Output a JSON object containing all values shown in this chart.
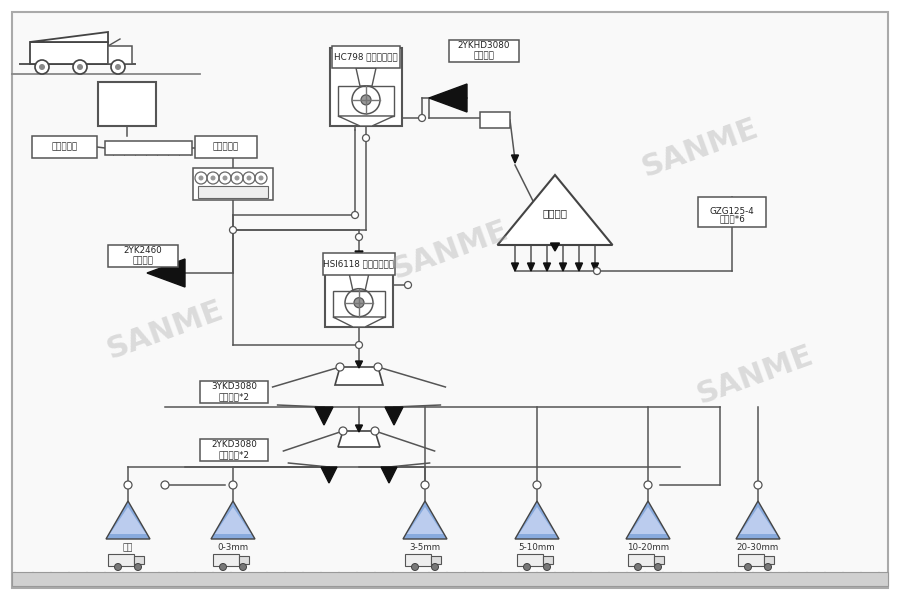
{
  "bg": "#ffffff",
  "border_bg": "#f8f8f8",
  "lc": "#555555",
  "lw": 1.1,
  "wm": [
    "SANME",
    "SANME",
    "SANME",
    "SANME"
  ],
  "wm_xywra": [
    [
      175,
      340,
      26,
      20,
      0.4
    ],
    [
      460,
      260,
      26,
      20,
      0.4
    ],
    [
      690,
      150,
      26,
      20,
      0.4
    ],
    [
      760,
      380,
      26,
      20,
      0.4
    ]
  ],
  "tri_fill_top": "#aabbee",
  "tri_fill_bot": "#8899dd",
  "tri_stroke": "#555555",
  "labels": {
    "feeder": "板式喂料机",
    "screw": "波纹喂料机",
    "hc798_1": "HC798",
    "hc798_2": "反击式破碎机",
    "screen1_1": "2YKHD3080",
    "screen1_2": "圆振动筛",
    "stockpile": "中转料堆",
    "feeder2_1": "GZG125-4",
    "feeder2_2": "给料机*6",
    "screen2_1": "2YK2460",
    "screen2_2": "圆振动筛",
    "hsi_1": "HSI6118",
    "hsi_2": "反击式破碎机",
    "screen3_1": "3YKD3080",
    "screen3_2": "圆振动筛*2",
    "screen4_1": "2YKD3080",
    "screen4_2": "圆振动筛*2",
    "p1": "弃土",
    "p2": "0-3mm",
    "p3": "3-5mm",
    "p4": "5-10mm",
    "p5": "10-20mm",
    "p6": "20-30mm"
  }
}
